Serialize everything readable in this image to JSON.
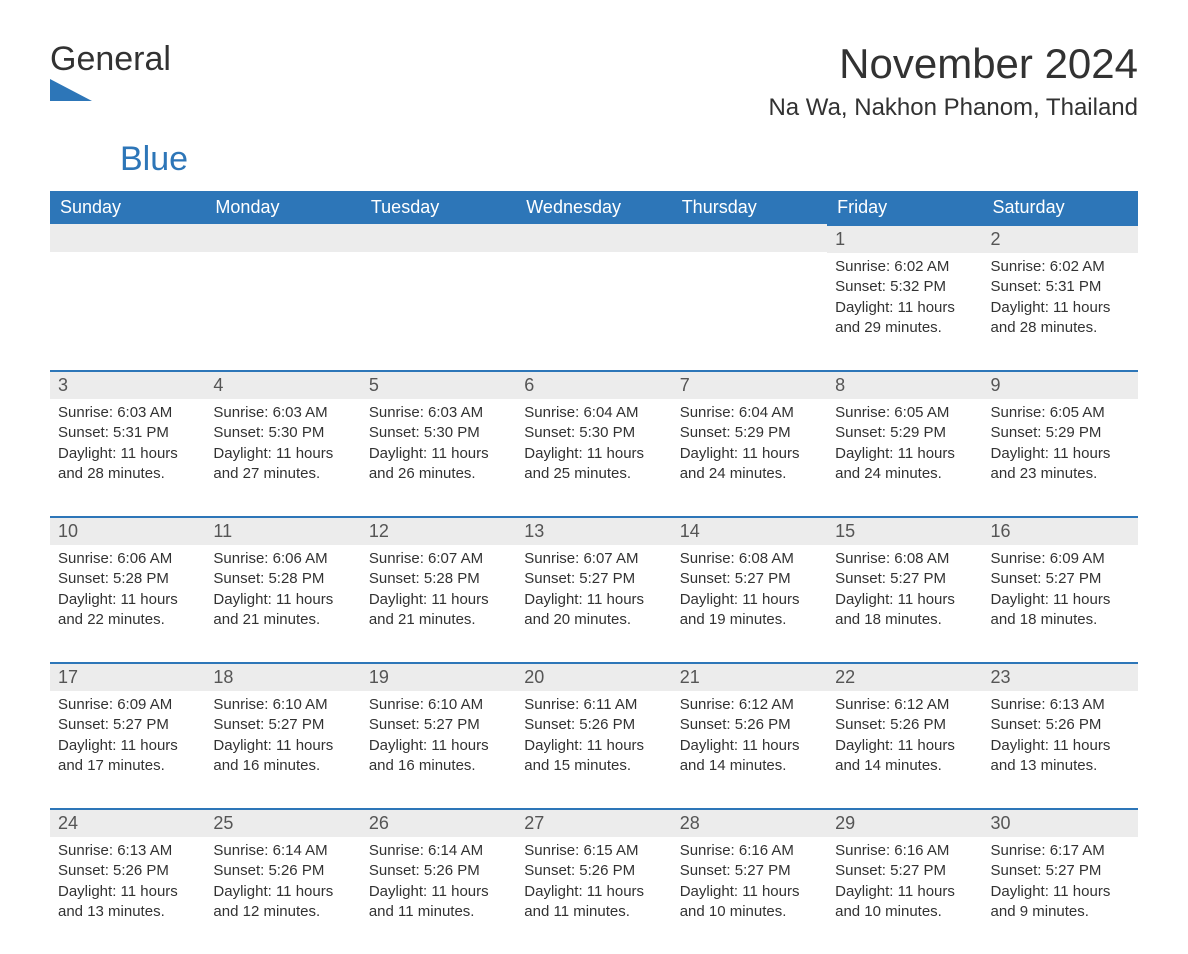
{
  "brand": {
    "text_general": "General",
    "text_blue": "Blue",
    "shape_color": "#2d76b8"
  },
  "header": {
    "month_title": "November 2024",
    "location": "Na Wa, Nakhon Phanom, Thailand"
  },
  "styling": {
    "header_bg": "#2d76b8",
    "header_text_color": "#ffffff",
    "day_strip_bg": "#ececec",
    "day_strip_border": "#2d76b8",
    "body_text_color": "#323232",
    "page_bg": "#ffffff",
    "month_title_fontsize": 42,
    "location_fontsize": 24,
    "weekday_fontsize": 18,
    "day_number_fontsize": 18,
    "day_body_fontsize": 15,
    "columns": 7,
    "rows": 5
  },
  "weekdays": [
    "Sunday",
    "Monday",
    "Tuesday",
    "Wednesday",
    "Thursday",
    "Friday",
    "Saturday"
  ],
  "weeks": [
    [
      {
        "empty": true
      },
      {
        "empty": true
      },
      {
        "empty": true
      },
      {
        "empty": true
      },
      {
        "empty": true
      },
      {
        "n": "1",
        "sunrise": "Sunrise: 6:02 AM",
        "sunset": "Sunset: 5:32 PM",
        "d1": "Daylight: 11 hours",
        "d2": "and 29 minutes."
      },
      {
        "n": "2",
        "sunrise": "Sunrise: 6:02 AM",
        "sunset": "Sunset: 5:31 PM",
        "d1": "Daylight: 11 hours",
        "d2": "and 28 minutes."
      }
    ],
    [
      {
        "n": "3",
        "sunrise": "Sunrise: 6:03 AM",
        "sunset": "Sunset: 5:31 PM",
        "d1": "Daylight: 11 hours",
        "d2": "and 28 minutes."
      },
      {
        "n": "4",
        "sunrise": "Sunrise: 6:03 AM",
        "sunset": "Sunset: 5:30 PM",
        "d1": "Daylight: 11 hours",
        "d2": "and 27 minutes."
      },
      {
        "n": "5",
        "sunrise": "Sunrise: 6:03 AM",
        "sunset": "Sunset: 5:30 PM",
        "d1": "Daylight: 11 hours",
        "d2": "and 26 minutes."
      },
      {
        "n": "6",
        "sunrise": "Sunrise: 6:04 AM",
        "sunset": "Sunset: 5:30 PM",
        "d1": "Daylight: 11 hours",
        "d2": "and 25 minutes."
      },
      {
        "n": "7",
        "sunrise": "Sunrise: 6:04 AM",
        "sunset": "Sunset: 5:29 PM",
        "d1": "Daylight: 11 hours",
        "d2": "and 24 minutes."
      },
      {
        "n": "8",
        "sunrise": "Sunrise: 6:05 AM",
        "sunset": "Sunset: 5:29 PM",
        "d1": "Daylight: 11 hours",
        "d2": "and 24 minutes."
      },
      {
        "n": "9",
        "sunrise": "Sunrise: 6:05 AM",
        "sunset": "Sunset: 5:29 PM",
        "d1": "Daylight: 11 hours",
        "d2": "and 23 minutes."
      }
    ],
    [
      {
        "n": "10",
        "sunrise": "Sunrise: 6:06 AM",
        "sunset": "Sunset: 5:28 PM",
        "d1": "Daylight: 11 hours",
        "d2": "and 22 minutes."
      },
      {
        "n": "11",
        "sunrise": "Sunrise: 6:06 AM",
        "sunset": "Sunset: 5:28 PM",
        "d1": "Daylight: 11 hours",
        "d2": "and 21 minutes."
      },
      {
        "n": "12",
        "sunrise": "Sunrise: 6:07 AM",
        "sunset": "Sunset: 5:28 PM",
        "d1": "Daylight: 11 hours",
        "d2": "and 21 minutes."
      },
      {
        "n": "13",
        "sunrise": "Sunrise: 6:07 AM",
        "sunset": "Sunset: 5:27 PM",
        "d1": "Daylight: 11 hours",
        "d2": "and 20 minutes."
      },
      {
        "n": "14",
        "sunrise": "Sunrise: 6:08 AM",
        "sunset": "Sunset: 5:27 PM",
        "d1": "Daylight: 11 hours",
        "d2": "and 19 minutes."
      },
      {
        "n": "15",
        "sunrise": "Sunrise: 6:08 AM",
        "sunset": "Sunset: 5:27 PM",
        "d1": "Daylight: 11 hours",
        "d2": "and 18 minutes."
      },
      {
        "n": "16",
        "sunrise": "Sunrise: 6:09 AM",
        "sunset": "Sunset: 5:27 PM",
        "d1": "Daylight: 11 hours",
        "d2": "and 18 minutes."
      }
    ],
    [
      {
        "n": "17",
        "sunrise": "Sunrise: 6:09 AM",
        "sunset": "Sunset: 5:27 PM",
        "d1": "Daylight: 11 hours",
        "d2": "and 17 minutes."
      },
      {
        "n": "18",
        "sunrise": "Sunrise: 6:10 AM",
        "sunset": "Sunset: 5:27 PM",
        "d1": "Daylight: 11 hours",
        "d2": "and 16 minutes."
      },
      {
        "n": "19",
        "sunrise": "Sunrise: 6:10 AM",
        "sunset": "Sunset: 5:27 PM",
        "d1": "Daylight: 11 hours",
        "d2": "and 16 minutes."
      },
      {
        "n": "20",
        "sunrise": "Sunrise: 6:11 AM",
        "sunset": "Sunset: 5:26 PM",
        "d1": "Daylight: 11 hours",
        "d2": "and 15 minutes."
      },
      {
        "n": "21",
        "sunrise": "Sunrise: 6:12 AM",
        "sunset": "Sunset: 5:26 PM",
        "d1": "Daylight: 11 hours",
        "d2": "and 14 minutes."
      },
      {
        "n": "22",
        "sunrise": "Sunrise: 6:12 AM",
        "sunset": "Sunset: 5:26 PM",
        "d1": "Daylight: 11 hours",
        "d2": "and 14 minutes."
      },
      {
        "n": "23",
        "sunrise": "Sunrise: 6:13 AM",
        "sunset": "Sunset: 5:26 PM",
        "d1": "Daylight: 11 hours",
        "d2": "and 13 minutes."
      }
    ],
    [
      {
        "n": "24",
        "sunrise": "Sunrise: 6:13 AM",
        "sunset": "Sunset: 5:26 PM",
        "d1": "Daylight: 11 hours",
        "d2": "and 13 minutes."
      },
      {
        "n": "25",
        "sunrise": "Sunrise: 6:14 AM",
        "sunset": "Sunset: 5:26 PM",
        "d1": "Daylight: 11 hours",
        "d2": "and 12 minutes."
      },
      {
        "n": "26",
        "sunrise": "Sunrise: 6:14 AM",
        "sunset": "Sunset: 5:26 PM",
        "d1": "Daylight: 11 hours",
        "d2": "and 11 minutes."
      },
      {
        "n": "27",
        "sunrise": "Sunrise: 6:15 AM",
        "sunset": "Sunset: 5:26 PM",
        "d1": "Daylight: 11 hours",
        "d2": "and 11 minutes."
      },
      {
        "n": "28",
        "sunrise": "Sunrise: 6:16 AM",
        "sunset": "Sunset: 5:27 PM",
        "d1": "Daylight: 11 hours",
        "d2": "and 10 minutes."
      },
      {
        "n": "29",
        "sunrise": "Sunrise: 6:16 AM",
        "sunset": "Sunset: 5:27 PM",
        "d1": "Daylight: 11 hours",
        "d2": "and 10 minutes."
      },
      {
        "n": "30",
        "sunrise": "Sunrise: 6:17 AM",
        "sunset": "Sunset: 5:27 PM",
        "d1": "Daylight: 11 hours",
        "d2": "and 9 minutes."
      }
    ]
  ]
}
